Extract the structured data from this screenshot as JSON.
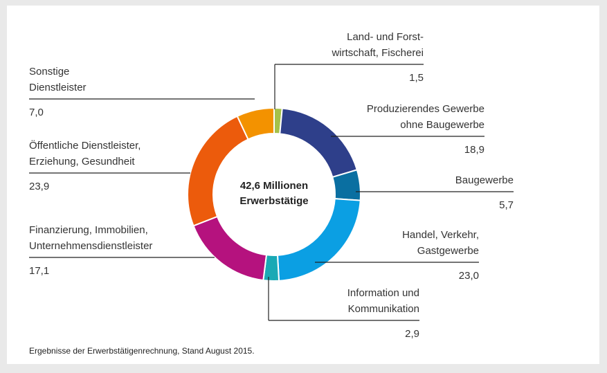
{
  "chart_data": {
    "type": "pie",
    "categories": [
      "Land- und Forst-\nwirtschaft, Fischerei",
      "Produzierendes Gewerbe\nohne Baugewerbe",
      "Baugewerbe",
      "Handel, Verkehr,\nGastgewerbe",
      "Information und\nKommunikation",
      "Finanzierung, Immobilien,\nUnternehmensdienstleister",
      "Öffentliche Dienstleister,\nErziehung, Gesundheit",
      "Sonstige\nDienstleister"
    ],
    "values": [
      1.5,
      18.9,
      5.7,
      23.0,
      2.9,
      17.1,
      23.9,
      7.0
    ],
    "value_labels": [
      "1,5",
      "18,9",
      "5,7",
      "23,0",
      "2,9",
      "17,1",
      "23,9",
      "7,0"
    ],
    "colors": [
      "#a5c14a",
      "#2e3f8a",
      "#0a6fa1",
      "#0b9fe3",
      "#1aa9b5",
      "#b5127e",
      "#ec5b0c",
      "#f39200"
    ],
    "center_label": "42,6 Millionen\nErwerbstätige",
    "note": "Ergebnisse der Erwerbstätigenrechnung, Stand August 2015."
  }
}
